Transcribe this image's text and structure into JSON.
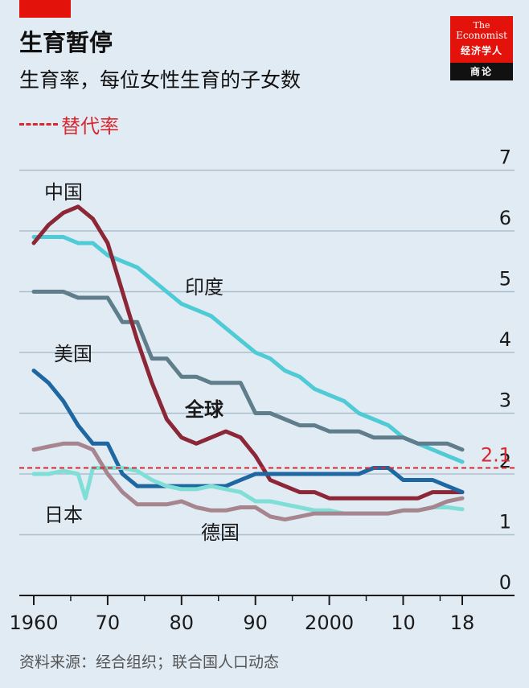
{
  "header": {
    "title": "生育暂停",
    "subtitle": "生育率，每位女性生育的子女数",
    "legend_label": "替代率"
  },
  "logo": {
    "line1": "The",
    "line2": "Economist",
    "line3": "经济学人",
    "line4": "商论"
  },
  "source": "资料来源：经合组织；联合国人口动态",
  "colors": {
    "china": "#8c2738",
    "india": "#4fcbd6",
    "world": "#5f7d8a",
    "usa": "#1f67a1",
    "japan": "#7fdfd6",
    "germany": "#a7858f",
    "replacement": "#d7282f"
  },
  "chart_data": {
    "type": "line",
    "x_tick_values": [
      1960,
      1970,
      1980,
      1990,
      2000,
      2010,
      2018
    ],
    "x_tick_labels": [
      "1960",
      "70",
      "80",
      "90",
      "2000",
      "10",
      "18"
    ],
    "y_ticks": [
      0,
      1,
      2,
      3,
      4,
      5,
      6,
      7
    ],
    "ylim": [
      0,
      7
    ],
    "xlim": [
      1960,
      2018
    ],
    "grid": true,
    "replacement_rate": 2.1,
    "replacement_label": "2.1",
    "series": [
      {
        "name": "印度",
        "key": "india",
        "x": [
          1960,
          1962,
          1964,
          1966,
          1968,
          1970,
          1972,
          1974,
          1976,
          1978,
          1980,
          1982,
          1984,
          1986,
          1988,
          1990,
          1992,
          1994,
          1996,
          1998,
          2000,
          2002,
          2004,
          2006,
          2008,
          2010,
          2012,
          2014,
          2016,
          2018
        ],
        "y": [
          5.9,
          5.9,
          5.9,
          5.8,
          5.8,
          5.6,
          5.5,
          5.4,
          5.2,
          5.0,
          4.8,
          4.7,
          4.6,
          4.4,
          4.2,
          4.0,
          3.9,
          3.7,
          3.6,
          3.4,
          3.3,
          3.2,
          3.0,
          2.9,
          2.8,
          2.6,
          2.5,
          2.4,
          2.3,
          2.2
        ]
      },
      {
        "name": "全球",
        "key": "world",
        "x": [
          1960,
          1962,
          1964,
          1966,
          1968,
          1970,
          1972,
          1974,
          1976,
          1978,
          1980,
          1982,
          1984,
          1986,
          1988,
          1990,
          1992,
          1994,
          1996,
          1998,
          2000,
          2002,
          2004,
          2006,
          2008,
          2010,
          2012,
          2014,
          2016,
          2018
        ],
        "y": [
          5.0,
          5.0,
          5.0,
          4.9,
          4.9,
          4.9,
          4.5,
          4.5,
          3.9,
          3.9,
          3.6,
          3.6,
          3.5,
          3.5,
          3.5,
          3.0,
          3.0,
          2.9,
          2.8,
          2.8,
          2.7,
          2.7,
          2.7,
          2.6,
          2.6,
          2.6,
          2.5,
          2.5,
          2.5,
          2.4
        ]
      },
      {
        "name": "中国",
        "key": "china",
        "x": [
          1960,
          1962,
          1964,
          1966,
          1968,
          1970,
          1972,
          1974,
          1976,
          1978,
          1980,
          1982,
          1984,
          1986,
          1988,
          1990,
          1992,
          1994,
          1996,
          1998,
          2000,
          2002,
          2004,
          2006,
          2008,
          2010,
          2012,
          2014,
          2016,
          2018
        ],
        "y": [
          5.8,
          6.1,
          6.3,
          6.4,
          6.2,
          5.8,
          5.0,
          4.2,
          3.5,
          2.9,
          2.6,
          2.5,
          2.6,
          2.7,
          2.6,
          2.3,
          1.9,
          1.8,
          1.7,
          1.7,
          1.6,
          1.6,
          1.6,
          1.6,
          1.6,
          1.6,
          1.6,
          1.7,
          1.7,
          1.7
        ]
      },
      {
        "name": "美国",
        "key": "usa",
        "x": [
          1960,
          1962,
          1964,
          1966,
          1968,
          1970,
          1972,
          1974,
          1976,
          1978,
          1980,
          1982,
          1984,
          1986,
          1988,
          1990,
          1992,
          1994,
          1996,
          1998,
          2000,
          2002,
          2004,
          2006,
          2008,
          2010,
          2012,
          2014,
          2016,
          2018
        ],
        "y": [
          3.7,
          3.5,
          3.2,
          2.8,
          2.5,
          2.5,
          2.0,
          1.8,
          1.8,
          1.8,
          1.8,
          1.8,
          1.8,
          1.8,
          1.9,
          2.0,
          2.0,
          2.0,
          2.0,
          2.0,
          2.0,
          2.0,
          2.0,
          2.1,
          2.1,
          1.9,
          1.9,
          1.9,
          1.8,
          1.7
        ]
      },
      {
        "name": "日本",
        "key": "japan",
        "x": [
          1960,
          1962,
          1964,
          1966,
          1967,
          1968,
          1970,
          1972,
          1974,
          1976,
          1978,
          1980,
          1982,
          1984,
          1986,
          1988,
          1990,
          1992,
          1994,
          1996,
          1998,
          2000,
          2002,
          2004,
          2006,
          2008,
          2010,
          2012,
          2014,
          2016,
          2018
        ],
        "y": [
          2.0,
          2.0,
          2.05,
          2.0,
          1.6,
          2.1,
          2.1,
          2.1,
          2.05,
          1.9,
          1.8,
          1.75,
          1.75,
          1.8,
          1.75,
          1.7,
          1.55,
          1.55,
          1.5,
          1.45,
          1.4,
          1.4,
          1.35,
          1.35,
          1.35,
          1.35,
          1.4,
          1.4,
          1.45,
          1.45,
          1.42
        ]
      },
      {
        "name": "德国",
        "key": "germany",
        "x": [
          1960,
          1962,
          1964,
          1966,
          1968,
          1970,
          1972,
          1974,
          1976,
          1978,
          1980,
          1982,
          1984,
          1986,
          1988,
          1990,
          1992,
          1994,
          1996,
          1998,
          2000,
          2002,
          2004,
          2006,
          2008,
          2010,
          2012,
          2014,
          2016,
          2018
        ],
        "y": [
          2.4,
          2.45,
          2.5,
          2.5,
          2.4,
          2.0,
          1.7,
          1.5,
          1.5,
          1.5,
          1.55,
          1.45,
          1.4,
          1.4,
          1.45,
          1.45,
          1.3,
          1.25,
          1.3,
          1.35,
          1.35,
          1.35,
          1.35,
          1.35,
          1.35,
          1.4,
          1.4,
          1.45,
          1.55,
          1.6
        ]
      }
    ]
  }
}
